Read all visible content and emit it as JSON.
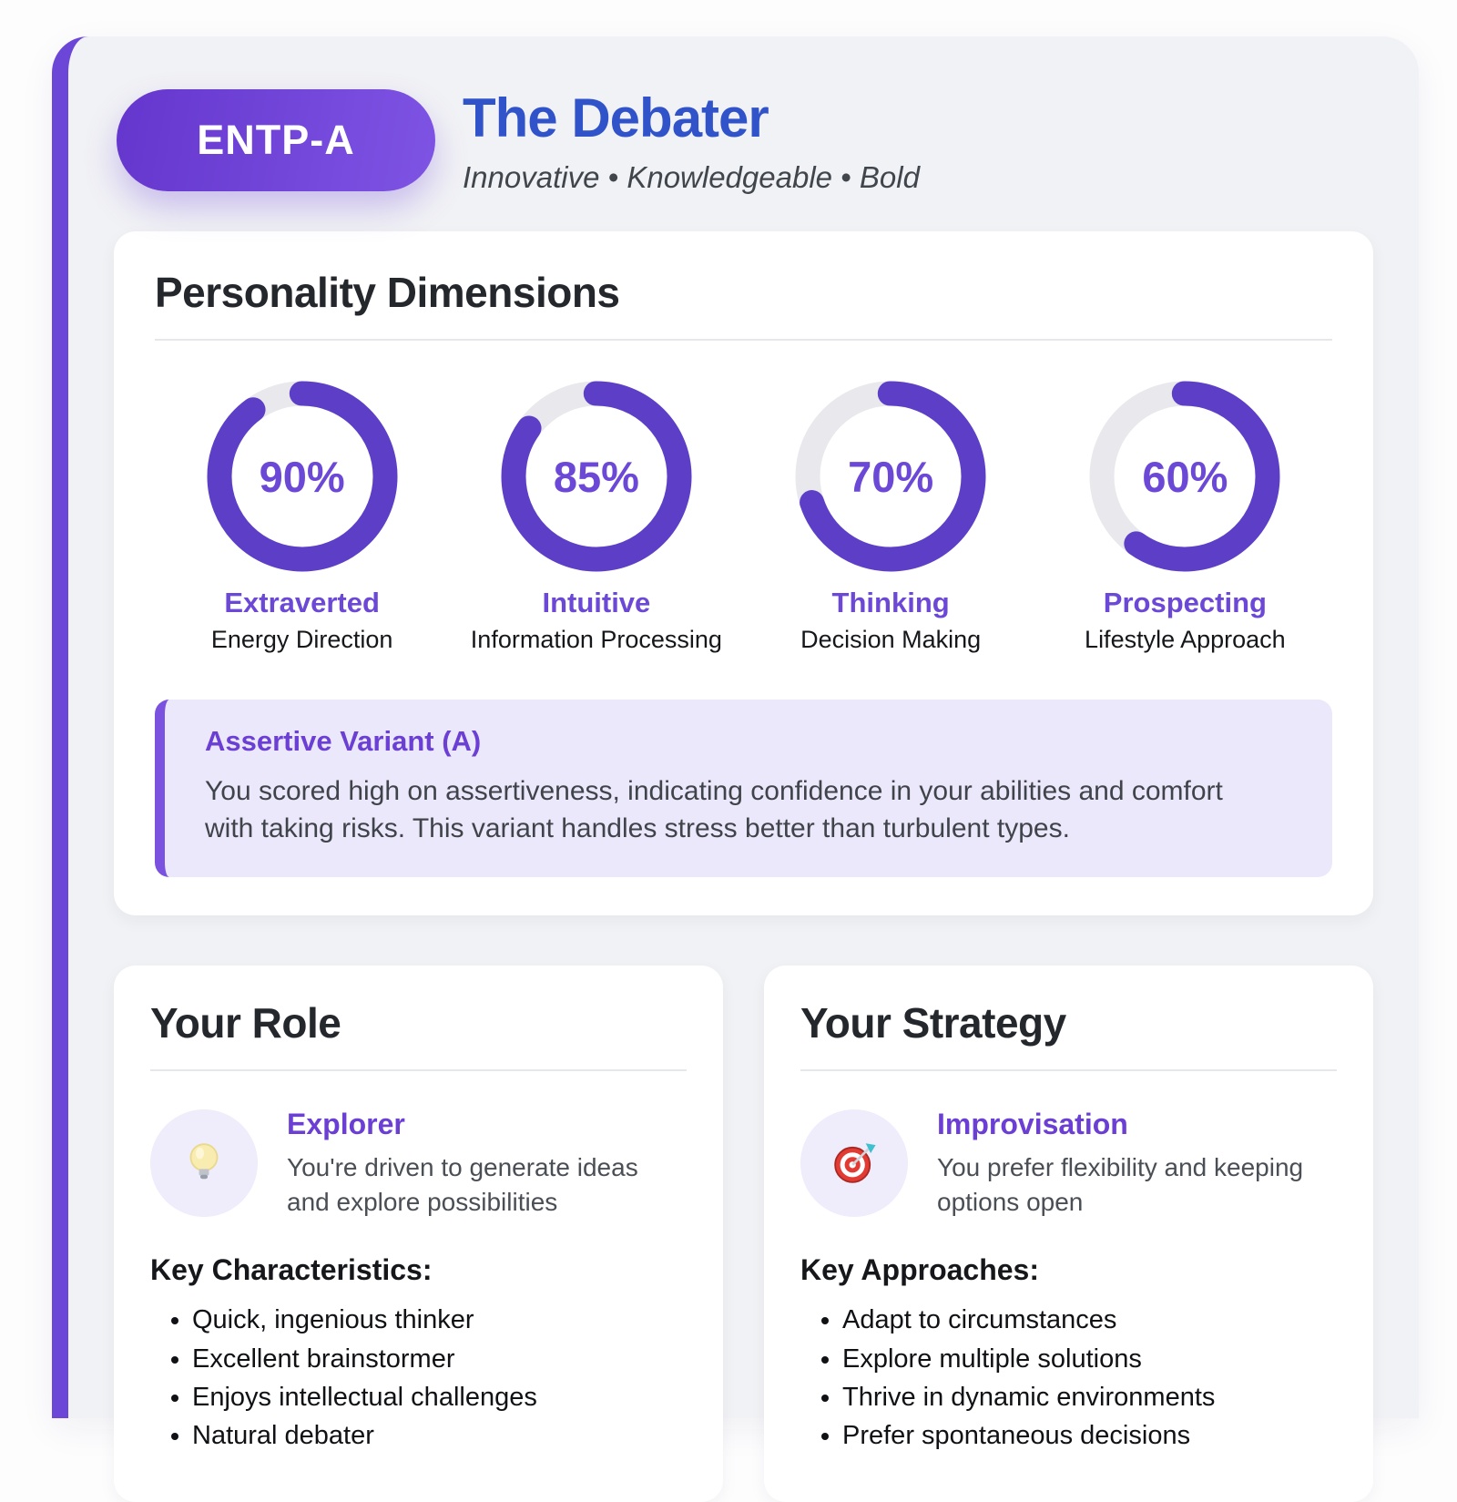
{
  "header": {
    "type_badge": "ENTP-A",
    "title": "The Debater",
    "subtitle": "Innovative • Knowledgeable • Bold"
  },
  "dimensions": {
    "section_title": "Personality Dimensions",
    "items": [
      {
        "percent": 90,
        "label": "Extraverted",
        "sublabel": "Energy Direction"
      },
      {
        "percent": 85,
        "label": "Intuitive",
        "sublabel": "Information Processing"
      },
      {
        "percent": 70,
        "label": "Thinking",
        "sublabel": "Decision Making"
      },
      {
        "percent": 60,
        "label": "Prospecting",
        "sublabel": "Lifestyle Approach"
      }
    ],
    "variant": {
      "title": "Assertive Variant (A)",
      "description": "You scored high on assertiveness, indicating confidence in your abilities and comfort with taking risks. This variant handles stress better than turbulent types."
    }
  },
  "role": {
    "section_title": "Your Role",
    "icon": "lightbulb-icon",
    "name": "Explorer",
    "description": "You're driven to generate ideas and explore possibilities",
    "list_title": "Key Characteristics:",
    "items": [
      "Quick, ingenious thinker",
      "Excellent brainstormer",
      "Enjoys intellectual challenges",
      "Natural debater"
    ]
  },
  "strategy": {
    "section_title": "Your Strategy",
    "icon": "target-icon",
    "name": "Improvisation",
    "description": "You prefer flexibility and keeping options open",
    "list_title": "Key Approaches:",
    "items": [
      "Adapt to circumstances",
      "Explore multiple solutions",
      "Thrive in dynamic environments",
      "Prefer spontaneous decisions"
    ]
  },
  "colors": {
    "accent_purple": "#5d3fc7",
    "label_purple": "#6c48d6",
    "badge_gradient_start": "#6536cd",
    "badge_gradient_end": "#7e54e4",
    "title_blue": "#3053c9",
    "variant_background": "#ece8fb",
    "ring_track_gray": "#e8e8ed",
    "panel_background": "#f1f2f5"
  }
}
